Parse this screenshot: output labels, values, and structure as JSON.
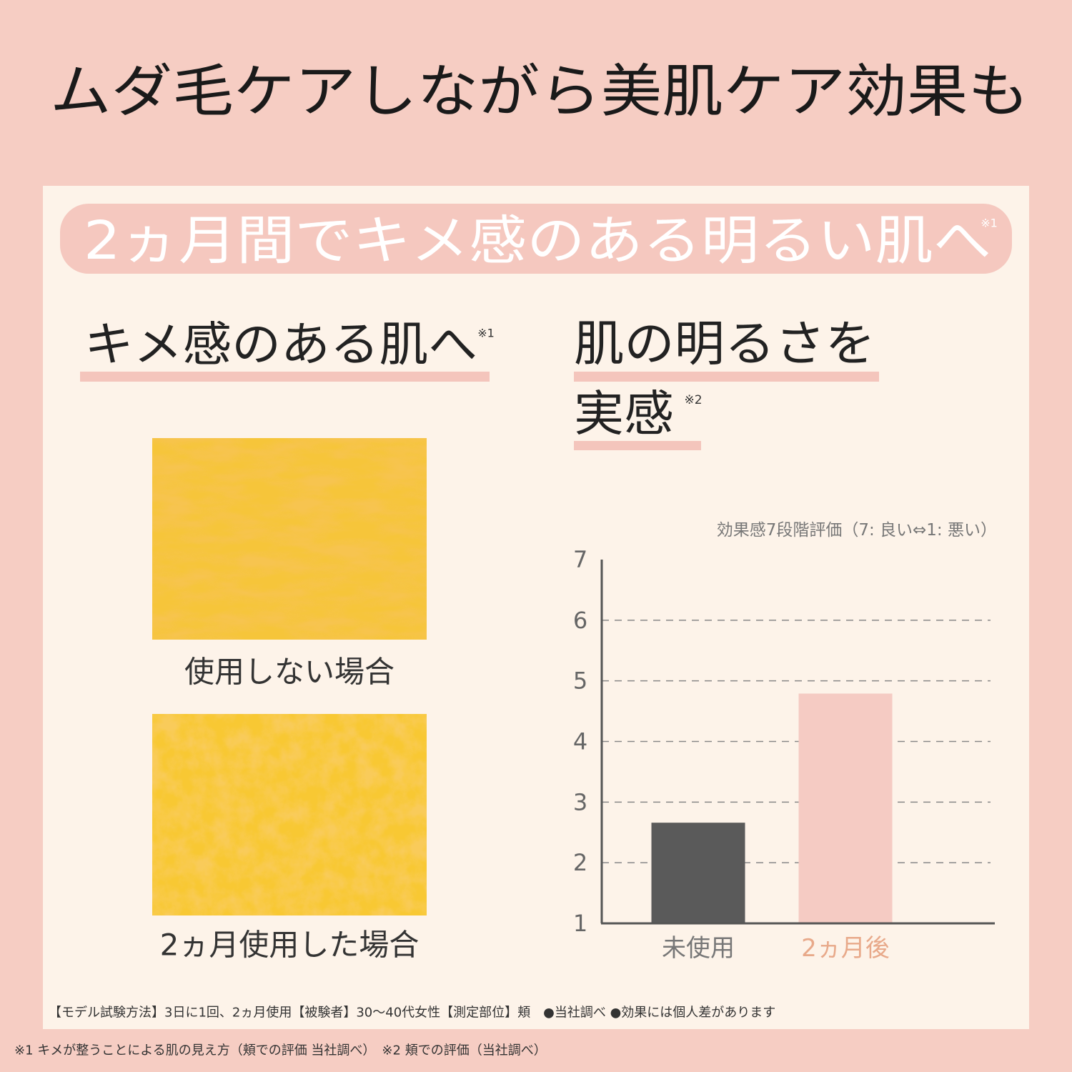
{
  "header": {
    "title": "ムダ毛ケアしながら美肌ケア効果も"
  },
  "banner": {
    "text": "2ヵ月間でキメ感のある明るい肌へ",
    "note": "※1"
  },
  "texture": {
    "heading": "キメ感のある肌へ",
    "note": "※1",
    "captions": [
      "使用しない場合",
      "2ヵ月使用した場合"
    ]
  },
  "chart_data": {
    "type": "bar",
    "title_lines": [
      "肌の明るさを",
      "実感"
    ],
    "title_note": "※2",
    "subtitle": "効果感7段階評価（7: 良い⇔1: 悪い）",
    "categories": [
      "未使用",
      "2ヵ月後"
    ],
    "values": [
      2.66,
      4.79
    ],
    "colors": [
      "#5a5a5a",
      "#f5cbc3"
    ],
    "label_colors": [
      "#777777",
      "#e8a98a"
    ],
    "ylim": [
      1,
      7
    ],
    "yticks": [
      1,
      2,
      3,
      4,
      5,
      6,
      7
    ],
    "grid": true
  },
  "footer": {
    "method": "【モデル試験方法】3日に1回、2ヵ月使用【被験者】30〜40代女性【測定部位】頬　●当社調べ ●効果には個人差があります",
    "notes": "※1 キメが整うことによる肌の見え方（頬での評価 当社調べ）　※2 頬での評価（当社調べ）"
  }
}
